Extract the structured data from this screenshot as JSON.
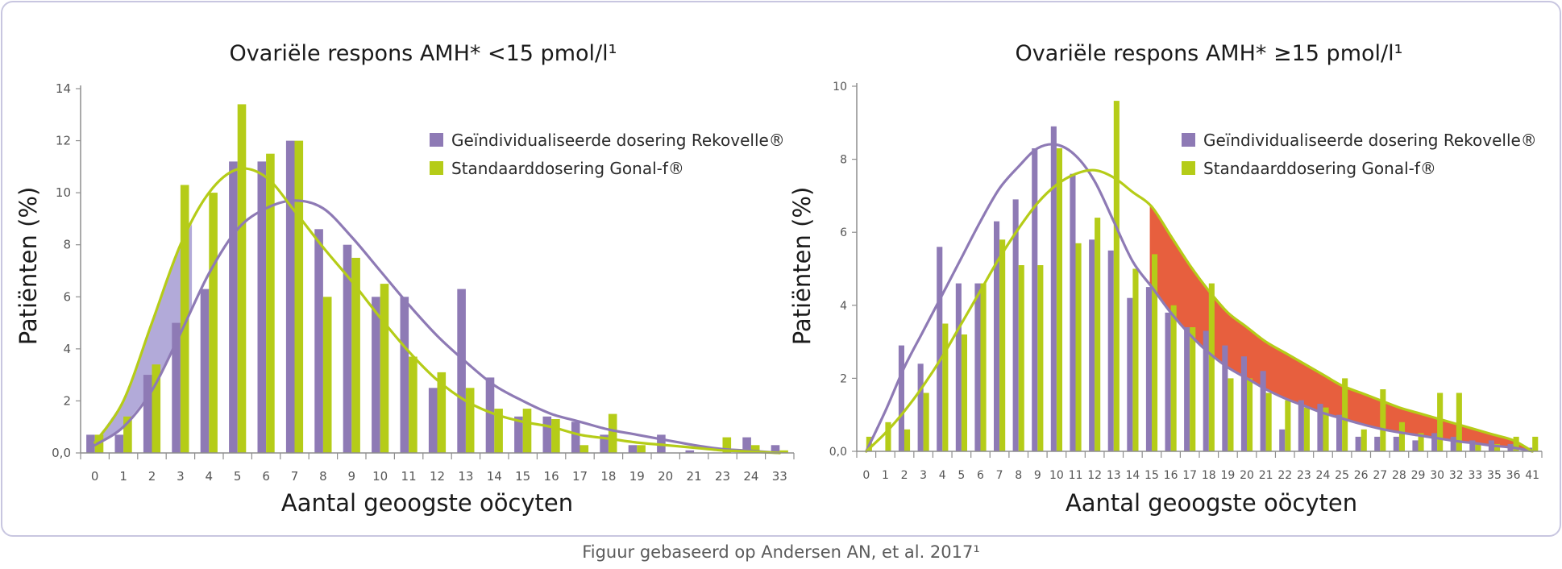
{
  "caption": "Figuur gebaseerd op Andersen AN, et al. 2017¹",
  "colors": {
    "purple": "#8e7ab5",
    "green": "#b5cc18",
    "shade_purple": "#b2aad9",
    "shade_red": "#e75f3e",
    "frame": "#c8c6e0",
    "axis": "#8e8e8e"
  },
  "chart_data": [
    {
      "type": "bar",
      "title": "Ovariële respons AMH* <15 pmol/l¹",
      "xlabel": "Aantal geoogste oöcyten",
      "ylabel": "Patiënten (%)",
      "ylim": [
        0,
        14
      ],
      "yticks": [
        "0,0",
        "2",
        "4",
        "6",
        "8",
        "10",
        "12",
        "14"
      ],
      "categories": [
        "0",
        "1",
        "2",
        "3",
        "4",
        "5",
        "6",
        "7",
        "8",
        "9",
        "10",
        "11",
        "12",
        "13",
        "14",
        "15",
        "16",
        "17",
        "18",
        "19",
        "20",
        "21",
        "23",
        "24",
        "33"
      ],
      "series": [
        {
          "name": "Geïndividualiseerde dosering Rekovelle®",
          "color": "#8e7ab5",
          "values": [
            0.7,
            0.7,
            3.0,
            5.0,
            6.3,
            11.2,
            11.2,
            12.0,
            8.6,
            8.0,
            6.0,
            6.0,
            2.5,
            6.3,
            2.9,
            1.4,
            1.4,
            1.2,
            0.7,
            0.3,
            0.7,
            0.1,
            0.0,
            0.6,
            0.3
          ]
        },
        {
          "name": "Standaarddosering Gonal-f®",
          "color": "#b5cc18",
          "values": [
            0.7,
            1.4,
            3.4,
            10.3,
            10.0,
            13.4,
            11.5,
            12.0,
            6.0,
            7.5,
            6.5,
            3.7,
            3.1,
            2.5,
            1.7,
            1.7,
            1.3,
            0.3,
            1.5,
            0.3,
            0.0,
            0.0,
            0.6,
            0.3,
            0.1
          ]
        }
      ],
      "curves": [
        {
          "series": "Geïndividualiseerde dosering Rekovelle®",
          "color": "#8e7ab5",
          "values": [
            0.3,
            1.0,
            2.4,
            4.6,
            6.9,
            8.6,
            9.4,
            9.7,
            9.4,
            8.3,
            7.0,
            5.7,
            4.5,
            3.5,
            2.6,
            2.0,
            1.5,
            1.2,
            0.9,
            0.7,
            0.5,
            0.3,
            0.15,
            0.08,
            0.0
          ]
        },
        {
          "series": "Standaarddosering Gonal-f®",
          "color": "#b5cc18",
          "values": [
            0.4,
            2.0,
            5.0,
            8.0,
            10.0,
            10.9,
            10.6,
            9.3,
            7.9,
            6.6,
            5.2,
            3.9,
            2.8,
            2.0,
            1.5,
            1.2,
            1.0,
            0.7,
            0.55,
            0.4,
            0.3,
            0.2,
            0.1,
            0.05,
            0.0
          ]
        }
      ],
      "shaded_region": {
        "between": "curves",
        "from_index": 0,
        "to_index": 3.4,
        "color": "#b2aad9"
      },
      "legend_position": "top-right",
      "grid": false
    },
    {
      "type": "bar",
      "title": "Ovariële respons AMH* ≥15 pmol/l¹",
      "xlabel": "Aantal geoogste oöcyten",
      "ylabel": "Patiënten (%)",
      "ylim": [
        0,
        10
      ],
      "yticks": [
        "0,0",
        "2",
        "4",
        "6",
        "8",
        "10"
      ],
      "categories": [
        "0",
        "1",
        "2",
        "3",
        "4",
        "5",
        "6",
        "7",
        "8",
        "9",
        "10",
        "11",
        "12",
        "13",
        "14",
        "15",
        "16",
        "17",
        "18",
        "19",
        "20",
        "21",
        "22",
        "23",
        "24",
        "25",
        "26",
        "27",
        "28",
        "29",
        "30",
        "32",
        "33",
        "35",
        "36",
        "41"
      ],
      "series": [
        {
          "name": "Geïndividualiseerde dosering Rekovelle®",
          "color": "#8e7ab5",
          "values": [
            0.0,
            0.0,
            2.9,
            2.4,
            5.6,
            4.6,
            4.6,
            6.3,
            6.9,
            8.3,
            8.9,
            7.6,
            5.8,
            5.5,
            4.2,
            4.5,
            3.8,
            3.4,
            3.3,
            2.9,
            2.6,
            2.2,
            0.6,
            1.4,
            1.3,
            1.0,
            0.4,
            0.4,
            0.4,
            0.3,
            0.5,
            0.4,
            0.3,
            0.3,
            0.2,
            0.1
          ]
        },
        {
          "name": "Standaarddosering Gonal-f®",
          "color": "#b5cc18",
          "values": [
            0.4,
            0.8,
            0.6,
            1.6,
            3.5,
            3.2,
            4.6,
            5.8,
            5.1,
            5.1,
            8.3,
            5.7,
            6.4,
            9.6,
            5.0,
            5.4,
            4.0,
            3.4,
            4.6,
            2.0,
            2.0,
            1.6,
            1.4,
            1.2,
            1.2,
            2.0,
            0.6,
            1.7,
            0.8,
            0.5,
            1.6,
            1.6,
            0.2,
            0.2,
            0.4,
            0.4
          ]
        }
      ],
      "curves": [
        {
          "series": "Geïndividualiseerde dosering Rekovelle®",
          "color": "#8e7ab5",
          "values": [
            0.0,
            1.1,
            2.3,
            3.3,
            4.3,
            5.3,
            6.3,
            7.2,
            7.8,
            8.3,
            8.4,
            8.1,
            7.4,
            6.3,
            5.2,
            4.5,
            3.8,
            3.2,
            2.7,
            2.3,
            2.0,
            1.7,
            1.45,
            1.25,
            1.05,
            0.9,
            0.75,
            0.62,
            0.52,
            0.44,
            0.36,
            0.28,
            0.22,
            0.15,
            0.1,
            0.0
          ]
        },
        {
          "series": "Standaarddosering Gonal-f®",
          "color": "#b5cc18",
          "values": [
            0.0,
            0.5,
            1.1,
            1.8,
            2.6,
            3.5,
            4.4,
            5.3,
            6.1,
            6.8,
            7.3,
            7.6,
            7.7,
            7.5,
            7.1,
            6.7,
            5.9,
            5.1,
            4.4,
            3.8,
            3.4,
            3.0,
            2.7,
            2.4,
            2.1,
            1.8,
            1.6,
            1.4,
            1.2,
            1.05,
            0.9,
            0.75,
            0.6,
            0.45,
            0.3,
            0.0
          ]
        }
      ],
      "shaded_region": {
        "between": "curves",
        "from_index": 14.9,
        "to_index": 35,
        "color": "#e75f3e"
      },
      "legend_position": "top-right",
      "grid": false
    }
  ]
}
